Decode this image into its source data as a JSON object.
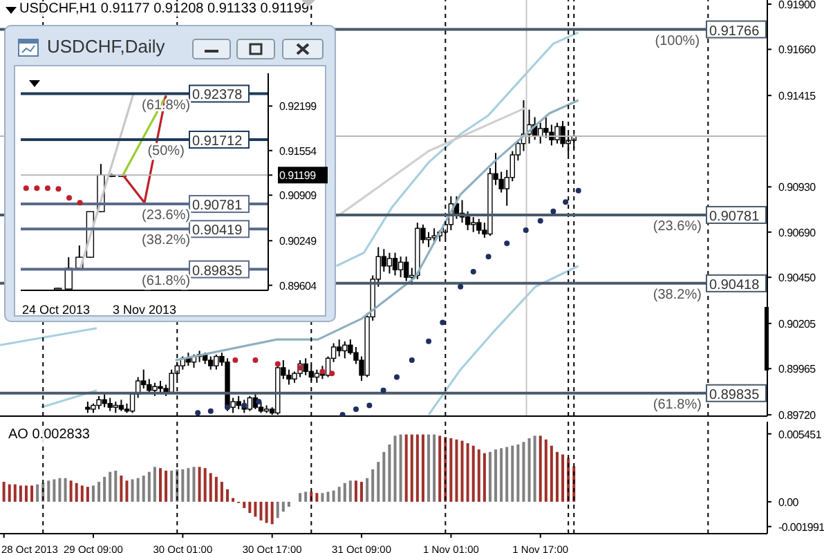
{
  "chart_data": [
    {
      "type": "candlestick",
      "title": "USDCHF,H1 0.91177 0.91208 0.91133 0.91199",
      "color": "#000000",
      "tick_labels": "y",
      "xlim": [
        "2013-10-28T16:18",
        "2013-11-03T09:36"
      ],
      "ylim": [
        0.89713,
        0.91922
      ],
      "yticks": [
        {
          "value": 0.919,
          "label": "0.91900"
        },
        {
          "value": 0.9166,
          "label": "0.91660"
        },
        {
          "value": 0.91415,
          "label": "0.91415"
        },
        {
          "value": 0.9093,
          "label": "0.90930"
        },
        {
          "value": 0.9069,
          "label": "0.90690"
        },
        {
          "value": 0.9045,
          "label": "0.90450"
        },
        {
          "value": 0.90205,
          "label": "0.90205"
        },
        {
          "value": 0.89965,
          "label": "0.89965"
        },
        {
          "value": 0.8972,
          "label": "0.89720"
        }
      ],
      "x": [
        "2013-10-29T08:00",
        "2013-10-29T09:00",
        "2013-10-29T10:00",
        "2013-10-29T11:00",
        "2013-10-29T12:00",
        "2013-10-29T13:00",
        "2013-10-29T14:00",
        "2013-10-29T15:00",
        "2013-10-29T16:00",
        "2013-10-29T17:00",
        "2013-10-29T18:00",
        "2013-10-29T19:00",
        "2013-10-29T20:00",
        "2013-10-29T21:00",
        "2013-10-29T22:00",
        "2013-10-29T23:00",
        "2013-10-30T00:00",
        "2013-10-30T01:00",
        "2013-10-30T02:00",
        "2013-10-30T03:00",
        "2013-10-30T04:00",
        "2013-10-30T05:00",
        "2013-10-30T06:00",
        "2013-10-30T07:00",
        "2013-10-30T08:00",
        "2013-10-30T09:00",
        "2013-10-30T10:00",
        "2013-10-30T11:00",
        "2013-10-30T12:00",
        "2013-10-30T13:00",
        "2013-10-30T14:00",
        "2013-10-30T15:00",
        "2013-10-30T16:00",
        "2013-10-30T17:00",
        "2013-10-30T18:00",
        "2013-10-30T19:00",
        "2013-10-30T20:00",
        "2013-10-30T21:00",
        "2013-10-30T22:00",
        "2013-10-30T23:00",
        "2013-10-31T00:00",
        "2013-10-31T01:00",
        "2013-10-31T02:00",
        "2013-10-31T03:00",
        "2013-10-31T04:00",
        "2013-10-31T05:00",
        "2013-10-31T06:00",
        "2013-10-31T07:00",
        "2013-10-31T08:00",
        "2013-10-31T09:00",
        "2013-10-31T10:00",
        "2013-10-31T11:00",
        "2013-10-31T12:00",
        "2013-10-31T13:00",
        "2013-10-31T14:00",
        "2013-10-31T15:00",
        "2013-10-31T16:00",
        "2013-10-31T17:00",
        "2013-10-31T18:00",
        "2013-10-31T19:00",
        "2013-10-31T20:00",
        "2013-10-31T21:00",
        "2013-10-31T22:00",
        "2013-10-31T23:00",
        "2013-11-01T00:00",
        "2013-11-01T01:00",
        "2013-11-01T02:00",
        "2013-11-01T03:00",
        "2013-11-01T04:00",
        "2013-11-01T05:00",
        "2013-11-01T06:00",
        "2013-11-01T07:00",
        "2013-11-01T08:00",
        "2013-11-01T09:00",
        "2013-11-01T10:00",
        "2013-11-01T11:00",
        "2013-11-01T12:00",
        "2013-11-01T13:00",
        "2013-11-01T14:00",
        "2013-11-01T15:00",
        "2013-11-01T16:00",
        "2013-11-01T17:00",
        "2013-11-01T18:00",
        "2013-11-01T19:00",
        "2013-11-01T20:00",
        "2013-11-01T21:00",
        "2013-11-01T22:00",
        "2013-11-01T23:00"
      ],
      "ohlc": [
        [
          0.8976,
          0.8979,
          0.8973,
          0.8975
        ],
        [
          0.8975,
          0.8978,
          0.8973,
          0.8977
        ],
        [
          0.8977,
          0.8982,
          0.8975,
          0.898
        ],
        [
          0.898,
          0.8983,
          0.8976,
          0.8978
        ],
        [
          0.8978,
          0.8981,
          0.8974,
          0.8976
        ],
        [
          0.8976,
          0.8979,
          0.8973,
          0.8977
        ],
        [
          0.8977,
          0.898,
          0.8974,
          0.8975
        ],
        [
          0.8975,
          0.8978,
          0.8973,
          0.8974
        ],
        [
          0.8974,
          0.8984,
          0.8973,
          0.8983
        ],
        [
          0.8983,
          0.8992,
          0.8981,
          0.899
        ],
        [
          0.899,
          0.8996,
          0.8986,
          0.8988
        ],
        [
          0.8988,
          0.8991,
          0.8983,
          0.8985
        ],
        [
          0.8985,
          0.8989,
          0.8982,
          0.8987
        ],
        [
          0.8987,
          0.899,
          0.8984,
          0.8986
        ],
        [
          0.8986,
          0.8988,
          0.8982,
          0.8984
        ],
        [
          0.8984,
          0.8996,
          0.8983,
          0.8994
        ],
        [
          0.8994,
          0.9,
          0.8991,
          0.8998
        ],
        [
          0.8998,
          0.9003,
          0.8996,
          0.9002
        ],
        [
          0.9002,
          0.9005,
          0.8998,
          0.9
        ],
        [
          0.9,
          0.9004,
          0.8997,
          0.9003
        ],
        [
          0.9003,
          0.9006,
          0.9,
          0.9004
        ],
        [
          0.9004,
          0.9005,
          0.8999,
          0.9001
        ],
        [
          0.9001,
          0.9003,
          0.8996,
          0.8998
        ],
        [
          0.8998,
          0.9004,
          0.8996,
          0.9003
        ],
        [
          0.9003,
          0.9005,
          0.8998,
          0.9
        ],
        [
          0.9,
          0.9002,
          0.8974,
          0.8976
        ],
        [
          0.8976,
          0.8981,
          0.8973,
          0.8979
        ],
        [
          0.8979,
          0.8982,
          0.8975,
          0.8977
        ],
        [
          0.8977,
          0.898,
          0.8973,
          0.8975
        ],
        [
          0.8975,
          0.8982,
          0.8974,
          0.8981
        ],
        [
          0.8981,
          0.8983,
          0.8975,
          0.8976
        ],
        [
          0.8976,
          0.8979,
          0.8973,
          0.8974
        ],
        [
          0.8974,
          0.8977,
          0.8973,
          0.8975
        ],
        [
          0.8975,
          0.8976,
          0.8972,
          0.8973
        ],
        [
          0.8973,
          0.8999,
          0.8972,
          0.8997
        ],
        [
          0.8997,
          0.9001,
          0.8991,
          0.8993
        ],
        [
          0.8993,
          0.8996,
          0.8988,
          0.8991
        ],
        [
          0.8991,
          0.8995,
          0.8989,
          0.8994
        ],
        [
          0.8994,
          0.9001,
          0.8992,
          0.8999
        ],
        [
          0.8999,
          0.9002,
          0.8993,
          0.8995
        ],
        [
          0.8995,
          0.8998,
          0.899,
          0.8992
        ],
        [
          0.8992,
          0.8996,
          0.8989,
          0.8994
        ],
        [
          0.8994,
          0.8998,
          0.8991,
          0.8993
        ],
        [
          0.8993,
          0.9003,
          0.8992,
          0.9002
        ],
        [
          0.9002,
          0.901,
          0.9,
          0.9008
        ],
        [
          0.9008,
          0.9012,
          0.9003,
          0.9006
        ],
        [
          0.9006,
          0.9011,
          0.9002,
          0.9009
        ],
        [
          0.9009,
          0.9012,
          0.9004,
          0.9005
        ],
        [
          0.9005,
          0.9008,
          0.8999,
          0.9001
        ],
        [
          0.9001,
          0.9003,
          0.899,
          0.8993
        ],
        [
          0.8993,
          0.9026,
          0.8992,
          0.9024
        ],
        [
          0.9024,
          0.9046,
          0.9022,
          0.9044
        ],
        [
          0.9044,
          0.9061,
          0.904,
          0.9056
        ],
        [
          0.9056,
          0.906,
          0.9048,
          0.9051
        ],
        [
          0.9051,
          0.9058,
          0.9047,
          0.9055
        ],
        [
          0.9055,
          0.9058,
          0.9046,
          0.9049
        ],
        [
          0.9049,
          0.9056,
          0.9045,
          0.9053
        ],
        [
          0.9053,
          0.9056,
          0.9043,
          0.9045
        ],
        [
          0.9045,
          0.905,
          0.9041,
          0.9046
        ],
        [
          0.9046,
          0.9074,
          0.9044,
          0.9071
        ],
        [
          0.9071,
          0.9073,
          0.9063,
          0.9065
        ],
        [
          0.9065,
          0.9069,
          0.9061,
          0.9066
        ],
        [
          0.9066,
          0.9071,
          0.9063,
          0.9067
        ],
        [
          0.9067,
          0.907,
          0.9064,
          0.9069
        ],
        [
          0.9069,
          0.9075,
          0.9066,
          0.9073
        ],
        [
          0.9073,
          0.9088,
          0.907,
          0.9084
        ],
        [
          0.9084,
          0.9088,
          0.9076,
          0.9079
        ],
        [
          0.9079,
          0.9086,
          0.9074,
          0.9077
        ],
        [
          0.9077,
          0.908,
          0.907,
          0.9073
        ],
        [
          0.9073,
          0.9077,
          0.9069,
          0.9074
        ],
        [
          0.9074,
          0.9076,
          0.9068,
          0.907
        ],
        [
          0.907,
          0.9074,
          0.9066,
          0.9068
        ],
        [
          0.9068,
          0.9103,
          0.9067,
          0.91
        ],
        [
          0.91,
          0.9111,
          0.9094,
          0.9097
        ],
        [
          0.9097,
          0.9101,
          0.909,
          0.9092
        ],
        [
          0.9092,
          0.9102,
          0.9083,
          0.9098
        ],
        [
          0.9098,
          0.9112,
          0.9096,
          0.911
        ],
        [
          0.911,
          0.9118,
          0.9107,
          0.9116
        ],
        [
          0.9116,
          0.9139,
          0.9112,
          0.9121
        ],
        [
          0.9121,
          0.9134,
          0.9116,
          0.9126
        ],
        [
          0.9126,
          0.913,
          0.9118,
          0.912
        ],
        [
          0.912,
          0.9127,
          0.9116,
          0.9124
        ],
        [
          0.9124,
          0.9131,
          0.9119,
          0.9122
        ],
        [
          0.9122,
          0.9126,
          0.9115,
          0.9118
        ],
        [
          0.9118,
          0.9127,
          0.9116,
          0.9125
        ],
        [
          0.9125,
          0.9128,
          0.9114,
          0.9116
        ],
        [
          0.9116,
          0.9121,
          0.911,
          0.91177
        ],
        [
          0.91177,
          0.91208,
          0.91133,
          0.91199
        ]
      ],
      "series": [
        {
          "type": "line",
          "color": "#a8d0e0",
          "x": [
            "2013-10-28T16:18",
            "2013-10-29T09:36",
            "2013-10-30T02:00",
            "2013-10-31T04:30",
            "2013-10-31T09:24",
            "2013-10-31T14:24",
            "2013-10-31T21:00",
            "2013-11-01T02:42",
            "2013-11-01T07:42",
            "2013-11-01T14:24",
            "2013-11-01T19:18",
            "2013-11-01T23:48"
          ],
          "values": [
            0.9009,
            0.9018,
            null,
            0.9051,
            0.9058,
            0.9082,
            0.9106,
            0.9121,
            0.9131,
            0.9153,
            0.9169,
            0.9175
          ]
        },
        {
          "type": "line",
          "color": "#a8d0e0",
          "x": [
            "2013-10-28T23:42",
            "2013-10-29T09:36",
            "2013-10-30T12:00",
            "2013-10-31T21:00",
            "2013-11-01T02:42",
            "2013-11-01T08:36",
            "2013-11-01T16:06",
            "2013-11-01T23:48"
          ],
          "values": [
            0.8976,
            0.8985,
            null,
            0.8972,
            0.8996,
            0.9016,
            0.904,
            0.9051
          ]
        },
        {
          "type": "line",
          "color": "#8fb0c0",
          "x": [
            "2013-10-29T23:42",
            "2013-10-30T17:48",
            "2013-10-31T01:12",
            "2013-10-31T09:00",
            "2013-10-31T18:36",
            "2013-11-01T02:42",
            "2013-11-01T08:36",
            "2013-11-01T18:36",
            "2013-11-01T23:48"
          ],
          "values": [
            0.9001,
            0.9012,
            0.9012,
            0.9023,
            0.9045,
            0.9089,
            0.9106,
            0.9132,
            0.9139
          ]
        },
        {
          "type": "line",
          "color": "#d0d0d0",
          "x": [
            "2013-10-31T04:30",
            "2013-10-31T21:00",
            "2013-11-01T14:24"
          ],
          "values": [
            0.9077,
            0.9112,
            0.9135
          ]
        },
        {
          "type": "scatter",
          "marker": "circle",
          "color": "#1f2f5f",
          "x": [
            "2013-10-30T03:42",
            "2013-10-30T06:00",
            "2013-10-30T09:00",
            "2013-10-30T12:00",
            "2013-10-30T14:36",
            "2013-10-31T05:36",
            "2013-10-31T08:00",
            "2013-10-31T10:24",
            "2013-10-31T12:54",
            "2013-10-31T15:18",
            "2013-10-31T18:00",
            "2013-10-31T21:00",
            "2013-10-31T23:30",
            "2013-11-01T02:42",
            "2013-11-01T05:00",
            "2013-11-01T07:42",
            "2013-11-01T11:00",
            "2013-11-01T14:24",
            "2013-11-01T17:00",
            "2013-11-01T19:18",
            "2013-11-01T21:30",
            "2013-11-01T23:48"
          ],
          "values": [
            0.8973,
            0.8974,
            0.8976,
            0.8977,
            0.8979,
            0.8972,
            0.8975,
            0.8977,
            0.8985,
            0.8992,
            0.9001,
            0.9011,
            0.9021,
            0.904,
            0.9048,
            0.9056,
            0.9063,
            0.907,
            0.9075,
            0.908,
            0.9085,
            0.9091
          ]
        },
        {
          "type": "scatter",
          "marker": "circle",
          "color": "#c02030",
          "x": [
            "2013-10-30T10:24",
            "2013-10-30T14:00",
            "2013-10-30T18:00",
            "2013-10-30T22:00",
            "2013-10-31T02:00",
            "2013-10-31T03:42"
          ],
          "values": [
            0.9001,
            0.9001,
            0.8999,
            0.8997,
            0.8995,
            0.8994
          ]
        }
      ],
      "ref_lines": [
        {
          "axis": "x",
          "value": "2013-10-29T00:00",
          "color": "#000000",
          "line_style": "dashed"
        },
        {
          "axis": "x",
          "value": "2013-10-30T00:00",
          "color": "#000000",
          "line_style": "dashed"
        },
        {
          "axis": "x",
          "value": "2013-10-31T00:00",
          "color": "#000000",
          "line_style": "dashed"
        },
        {
          "axis": "x",
          "value": "2013-11-01T00:00",
          "color": "#000000",
          "line_style": "dashed"
        },
        {
          "axis": "x",
          "value": "2013-11-01T22:00",
          "color": "#000000",
          "line_style": "dashed"
        },
        {
          "axis": "x",
          "value": "2013-11-01T23:00",
          "color": "#000000",
          "line_style": "dashed"
        },
        {
          "axis": "x",
          "value": "2013-11-02T23:00",
          "color": "#000000",
          "line_style": "dashed"
        },
        {
          "axis": "x",
          "value": "2013-11-01T14:30",
          "color": "#c8c8c8",
          "line_style": "solid"
        },
        {
          "axis": "y",
          "value": 0.91199,
          "color": "#b8b8b8",
          "line_style": "solid"
        },
        {
          "axis": "y",
          "value": 0.91766,
          "label": "0.91766",
          "color": "#4a5a6a",
          "line_style": "solid"
        },
        {
          "axis": "y",
          "value": 0.90781,
          "label": "0.90781",
          "color": "#4a5a6a",
          "line_style": "solid"
        },
        {
          "axis": "y",
          "value": 0.90418,
          "label": "0.90418",
          "color": "#4a5a6a",
          "line_style": "solid"
        },
        {
          "axis": "y",
          "value": 0.89835,
          "label": "0.89835",
          "color": "#4a5a6a",
          "line_style": "solid"
        }
      ],
      "annotations": [
        {
          "text": "(100%)",
          "x": "2013-11-02T17:30",
          "y": 0.91766
        },
        {
          "text": "(23.6%)",
          "x": "2013-11-02T17:30",
          "y": 0.90781
        },
        {
          "text": "(38.2%)",
          "x": "2013-11-02T17:30",
          "y": 0.90418
        },
        {
          "text": "(61.8%)",
          "x": "2013-11-02T17:30",
          "y": 0.89835
        }
      ]
    },
    {
      "type": "bar",
      "title": "AO 0.002833",
      "xlim": [
        "2013-10-28T16:18",
        "2013-11-03T09:36"
      ],
      "ylim": [
        -0.00256,
        0.00643
      ],
      "yticks": [
        {
          "value": 0.005451,
          "label": "0.005451"
        },
        {
          "value": 0,
          "label": "0.00"
        },
        {
          "value": -0.001991,
          "label": "-0.001991"
        }
      ],
      "xticks": [
        {
          "value": "2013-10-28T17:00",
          "label": "28 Oct 2013"
        },
        {
          "value": "2013-10-29T09:00",
          "label": "29 Oct 09:00"
        },
        {
          "value": "2013-10-30T01:00",
          "label": "30 Oct 01:00"
        },
        {
          "value": "2013-10-30T17:00",
          "label": "30 Oct 17:00"
        },
        {
          "value": "2013-10-31T09:00",
          "label": "31 Oct 09:00"
        },
        {
          "value": "2013-11-01T01:00",
          "label": "1 Nov 01:00"
        },
        {
          "value": "2013-11-01T17:00",
          "label": "1 Nov 17:00"
        }
      ],
      "x": [
        "2013-10-28T17:00",
        "2013-10-28T18:00",
        "2013-10-28T19:00",
        "2013-10-28T20:00",
        "2013-10-28T21:00",
        "2013-10-28T22:00",
        "2013-10-28T23:00",
        "2013-10-29T00:00",
        "2013-10-29T01:00",
        "2013-10-29T02:00",
        "2013-10-29T03:00",
        "2013-10-29T04:00",
        "2013-10-29T05:00",
        "2013-10-29T06:00",
        "2013-10-29T07:00",
        "2013-10-29T08:00",
        "2013-10-29T09:00",
        "2013-10-29T10:00",
        "2013-10-29T11:00",
        "2013-10-29T12:00",
        "2013-10-29T13:00",
        "2013-10-29T14:00",
        "2013-10-29T15:00",
        "2013-10-29T16:00",
        "2013-10-29T17:00",
        "2013-10-29T18:00",
        "2013-10-29T19:00",
        "2013-10-29T20:00",
        "2013-10-29T21:00",
        "2013-10-29T22:00",
        "2013-10-29T23:00",
        "2013-10-30T00:00",
        "2013-10-30T01:00",
        "2013-10-30T02:00",
        "2013-10-30T03:00",
        "2013-10-30T04:00",
        "2013-10-30T05:00",
        "2013-10-30T06:00",
        "2013-10-30T07:00",
        "2013-10-30T08:00",
        "2013-10-30T09:00",
        "2013-10-30T10:00",
        "2013-10-30T11:00",
        "2013-10-30T12:00",
        "2013-10-30T13:00",
        "2013-10-30T14:00",
        "2013-10-30T15:00",
        "2013-10-30T16:00",
        "2013-10-30T17:00",
        "2013-10-30T18:00",
        "2013-10-30T19:00",
        "2013-10-30T20:00",
        "2013-10-30T21:00",
        "2013-10-30T22:00",
        "2013-10-30T23:00",
        "2013-10-31T00:00",
        "2013-10-31T01:00",
        "2013-10-31T02:00",
        "2013-10-31T03:00",
        "2013-10-31T04:00",
        "2013-10-31T05:00",
        "2013-10-31T06:00",
        "2013-10-31T07:00",
        "2013-10-31T08:00",
        "2013-10-31T09:00",
        "2013-10-31T10:00",
        "2013-10-31T11:00",
        "2013-10-31T12:00",
        "2013-10-31T13:00",
        "2013-10-31T14:00",
        "2013-10-31T15:00",
        "2013-10-31T16:00",
        "2013-10-31T17:00",
        "2013-10-31T18:00",
        "2013-10-31T19:00",
        "2013-10-31T20:00",
        "2013-10-31T21:00",
        "2013-10-31T22:00",
        "2013-10-31T23:00",
        "2013-11-01T00:00",
        "2013-11-01T01:00",
        "2013-11-01T02:00",
        "2013-11-01T03:00",
        "2013-11-01T04:00",
        "2013-11-01T05:00",
        "2013-11-01T06:00",
        "2013-11-01T07:00",
        "2013-11-01T08:00",
        "2013-11-01T09:00",
        "2013-11-01T10:00",
        "2013-11-01T11:00",
        "2013-11-01T12:00",
        "2013-11-01T13:00",
        "2013-11-01T14:00",
        "2013-11-01T15:00",
        "2013-11-01T16:00",
        "2013-11-01T17:00",
        "2013-11-01T18:00",
        "2013-11-01T19:00",
        "2013-11-01T20:00",
        "2013-11-01T21:00",
        "2013-11-01T22:00",
        "2013-11-01T23:00"
      ],
      "values": [
        0.0016,
        0.0014,
        0.0014,
        0.0013,
        0.0013,
        0.0013,
        0.0014,
        0.0015,
        0.0017,
        0.0018,
        0.0019,
        0.0019,
        0.0017,
        0.0015,
        0.0013,
        0.0012,
        0.0013,
        0.0016,
        0.002,
        0.0024,
        0.0025,
        0.0021,
        0.0017,
        0.0018,
        0.0019,
        0.0021,
        0.0024,
        0.0028,
        0.0027,
        0.0025,
        0.0025,
        0.0026,
        0.0026,
        0.0027,
        0.0028,
        0.0028,
        0.0027,
        0.0023,
        0.002,
        0.0016,
        0.001,
        0.0003,
        -0.0001,
        -0.0005,
        -0.0009,
        -0.0012,
        -0.0015,
        -0.0017,
        -0.0018,
        -0.0013,
        -0.0008,
        -0.0004,
        null,
        0.0007,
        0.0008,
        0.0008,
        0.0007,
        0.0007,
        0.0008,
        0.0009,
        0.0012,
        0.0015,
        0.0017,
        0.0017,
        0.0016,
        0.0019,
        0.0026,
        0.0032,
        0.004,
        0.0046,
        0.0053,
        0.0054,
        0.0054,
        0.0054,
        0.0054,
        0.0054,
        0.0054,
        0.0054,
        0.0053,
        0.0052,
        0.0051,
        0.005,
        0.0049,
        0.0047,
        0.0045,
        0.0042,
        0.0039,
        0.004,
        0.0042,
        0.0043,
        0.0044,
        0.0045,
        0.0046,
        0.0048,
        0.0051,
        0.0053,
        0.0053,
        0.005,
        0.0045,
        0.004,
        0.0038,
        0.0035,
        0.002833
      ],
      "colors": [
        "#a0302a",
        "#a0302a",
        "#a0302a",
        "#a0302a",
        "#a0302a",
        "#a0302a",
        "#808080",
        "#808080",
        "#808080",
        "#808080",
        "#808080",
        "#808080",
        "#a0302a",
        "#a0302a",
        "#a0302a",
        "#a0302a",
        "#808080",
        "#808080",
        "#808080",
        "#808080",
        "#808080",
        "#a0302a",
        "#a0302a",
        "#808080",
        "#808080",
        "#808080",
        "#808080",
        "#808080",
        "#a0302a",
        "#a0302a",
        "#808080",
        "#808080",
        "#808080",
        "#808080",
        "#808080",
        "#a0302a",
        "#a0302a",
        "#a0302a",
        "#a0302a",
        "#a0302a",
        "#a0302a",
        "#a0302a",
        "#a0302a",
        "#a0302a",
        "#a0302a",
        "#a0302a",
        "#a0302a",
        "#a0302a",
        "#a0302a",
        "#808080",
        "#808080",
        "#808080",
        "#808080",
        "#808080",
        "#808080",
        "#a0302a",
        "#a0302a",
        "#808080",
        "#808080",
        "#808080",
        "#808080",
        "#808080",
        "#808080",
        "#a0302a",
        "#a0302a",
        "#808080",
        "#808080",
        "#808080",
        "#808080",
        "#808080",
        "#808080",
        "#808080",
        "#a0302a",
        "#a0302a",
        "#a0302a",
        "#a0302a",
        "#808080",
        "#808080",
        "#a0302a",
        "#a0302a",
        "#a0302a",
        "#a0302a",
        "#a0302a",
        "#a0302a",
        "#a0302a",
        "#a0302a",
        "#a0302a",
        "#808080",
        "#808080",
        "#808080",
        "#808080",
        "#808080",
        "#808080",
        "#808080",
        "#808080",
        "#808080",
        "#a0302a",
        "#a0302a",
        "#a0302a",
        "#a0302a",
        "#a0302a",
        "#a0302a",
        "#a0302a"
      ],
      "ref_lines": [
        {
          "axis": "x",
          "value": "2013-10-29T00:00",
          "color": "#000000",
          "line_style": "dashed"
        },
        {
          "axis": "x",
          "value": "2013-10-30T00:00",
          "color": "#000000",
          "line_style": "dashed"
        },
        {
          "axis": "x",
          "value": "2013-10-31T00:00",
          "color": "#000000",
          "line_style": "dashed"
        },
        {
          "axis": "x",
          "value": "2013-11-01T00:00",
          "color": "#000000",
          "line_style": "dashed"
        },
        {
          "axis": "x",
          "value": "2013-11-01T22:00",
          "color": "#000000",
          "line_style": "dashed"
        },
        {
          "axis": "x",
          "value": "2013-11-01T23:00",
          "color": "#000000",
          "line_style": "dashed"
        },
        {
          "axis": "x",
          "value": "2013-11-02T23:00",
          "color": "#000000",
          "line_style": "dashed"
        }
      ]
    },
    {
      "type": "candlestick",
      "title": "USDCHF,Daily",
      "color": "#000000",
      "ylim": [
        0.89531,
        0.92673
      ],
      "yticks": [
        {
          "value": 0.92199,
          "label": "0.92199"
        },
        {
          "value": 0.91554,
          "label": "0.91554"
        },
        {
          "value": 0.91199,
          "label": "0.91199"
        },
        {
          "value": 0.90909,
          "label": "0.90909"
        },
        {
          "value": 0.90249,
          "label": "0.90249"
        },
        {
          "value": 0.89604,
          "label": "0.89604"
        }
      ],
      "categories": [
        null,
        null,
        null,
        "24 Oct 2013",
        null,
        null,
        null,
        null,
        null,
        null,
        null,
        "3 Nov 2013",
        null,
        null,
        null,
        null,
        null,
        null,
        null,
        null,
        null,
        null,
        null
      ],
      "ohlc": [
        null,
        null,
        null,
        [
          0.8956,
          0.8957,
          0.8955,
          0.8956
        ],
        [
          0.8955,
          0.9001,
          0.8955,
          0.8985
        ],
        [
          0.8985,
          0.9018,
          0.8983,
          0.9001
        ],
        [
          0.9001,
          0.9067,
          0.9,
          0.9067
        ],
        [
          0.9067,
          0.9136,
          0.9066,
          0.912
        ],
        [
          0.912,
          0.9122,
          0.9117,
          0.9118
        ],
        [
          0.9119,
          0.9121,
          0.9117,
          0.91199
        ],
        null,
        null,
        null,
        null,
        null,
        null,
        null,
        null,
        null,
        null,
        null,
        null,
        null
      ],
      "series": [
        {
          "type": "line",
          "color": "#c8c8c8",
          "values": [
            null,
            null,
            null,
            null,
            null,
            0.8983,
            null,
            null,
            null,
            null,
            0.9239,
            null,
            null,
            null,
            null,
            null,
            null,
            null,
            null,
            null,
            null,
            null,
            null
          ]
        },
        {
          "type": "line",
          "color": "#9acd32",
          "values": [
            null,
            null,
            null,
            null,
            null,
            null,
            null,
            null,
            null,
            0.912,
            null,
            null,
            null,
            0.9235,
            null,
            null,
            null,
            null,
            null,
            null,
            null,
            null,
            null
          ]
        },
        {
          "type": "line",
          "color": "#c0202a",
          "values": [
            null,
            null,
            null,
            null,
            null,
            null,
            null,
            null,
            null,
            0.912,
            null,
            0.908,
            null,
            0.9235,
            null,
            null,
            null,
            null,
            null,
            null,
            null,
            null,
            null
          ]
        },
        {
          "type": "scatter",
          "marker": "circle",
          "color": "#c0202a",
          "values": [
            0.9101,
            0.9101,
            0.9101,
            0.91,
            0.9087,
            0.908,
            null,
            null,
            null,
            null,
            null,
            null,
            null,
            null,
            null,
            null,
            null,
            null,
            null,
            null,
            null,
            null,
            null
          ]
        }
      ],
      "ref_lines": [
        {
          "axis": "y",
          "value": 0.91199,
          "color": "#b8b8b8",
          "line_style": "solid"
        },
        {
          "axis": "y",
          "value": 0.92378,
          "label": "0.92378",
          "color": "#1f3a5a",
          "line_style": "solid"
        },
        {
          "axis": "y",
          "value": 0.91712,
          "label": "0.91712",
          "color": "#1f3a5a",
          "line_style": "solid"
        },
        {
          "axis": "y",
          "value": 0.90781,
          "label": "0.90781",
          "color": "#5a6a8a",
          "line_style": "solid"
        },
        {
          "axis": "y",
          "value": 0.90419,
          "label": "0.90419",
          "color": "#5a6a8a",
          "line_style": "solid"
        },
        {
          "axis": "y",
          "value": 0.89835,
          "label": "0.89835",
          "color": "#5a6a8a",
          "line_style": "solid"
        }
      ],
      "annotations": [
        {
          "text": "(61.8%)",
          "y": 0.92378
        },
        {
          "text": "(50%)",
          "y": 0.91712
        },
        {
          "text": "(23.6%)",
          "y": 0.90781
        },
        {
          "text": "(38.2%)",
          "y": 0.90419
        },
        {
          "text": "(61.8%)",
          "y": 0.89835
        }
      ]
    }
  ]
}
